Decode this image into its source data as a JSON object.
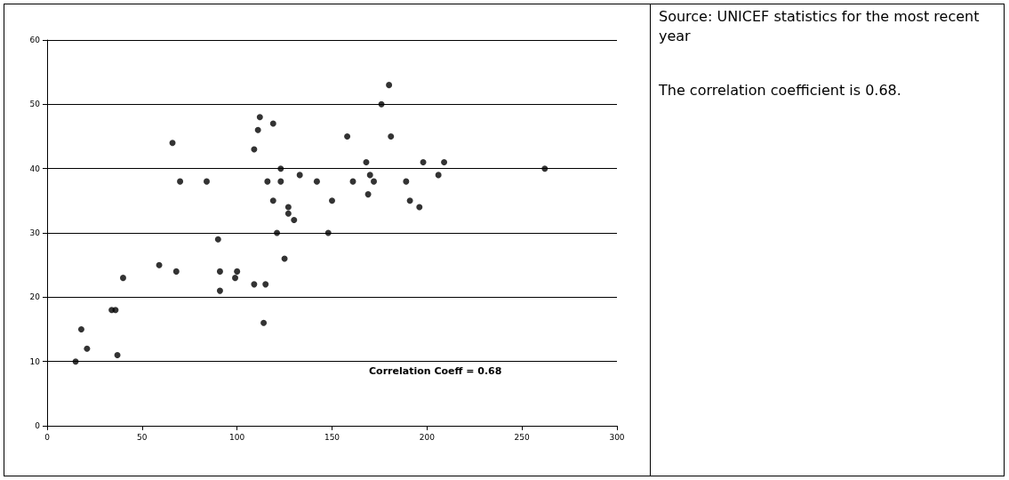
{
  "chart_data": {
    "type": "scatter",
    "color": "#000000",
    "marker": "circle",
    "grid": "y",
    "x": [
      15,
      18,
      21,
      34,
      36,
      37,
      40,
      59,
      66,
      68,
      70,
      84,
      90,
      91,
      91,
      99,
      100,
      109,
      109,
      111,
      112,
      114,
      115,
      116,
      119,
      119,
      121,
      123,
      123,
      125,
      127,
      127,
      130,
      133,
      142,
      148,
      150,
      158,
      161,
      168,
      169,
      170,
      172,
      176,
      180,
      181,
      189,
      191,
      196,
      198,
      206,
      209,
      262
    ],
    "values": [
      10,
      15,
      12,
      18,
      18,
      11,
      23,
      25,
      44,
      24,
      38,
      38,
      29,
      24,
      21,
      23,
      24,
      43,
      22,
      46,
      48,
      16,
      22,
      38,
      47,
      35,
      30,
      40,
      38,
      26,
      34,
      33,
      32,
      39,
      38,
      30,
      35,
      45,
      38,
      41,
      36,
      39,
      38,
      50,
      53,
      45,
      38,
      35,
      34,
      41,
      39,
      41,
      40
    ],
    "xlim": [
      0,
      300
    ],
    "xticks": [
      0,
      50,
      100,
      150,
      200,
      250,
      300
    ],
    "ylim": [
      0,
      60
    ],
    "yticks": [
      0,
      10,
      20,
      30,
      40,
      50,
      60
    ],
    "annotations": [
      "Correlation Coeff = 0.68",
      "Source: UNICEF statistics for the most recent year",
      "The correlation coefficient is 0.68."
    ]
  }
}
